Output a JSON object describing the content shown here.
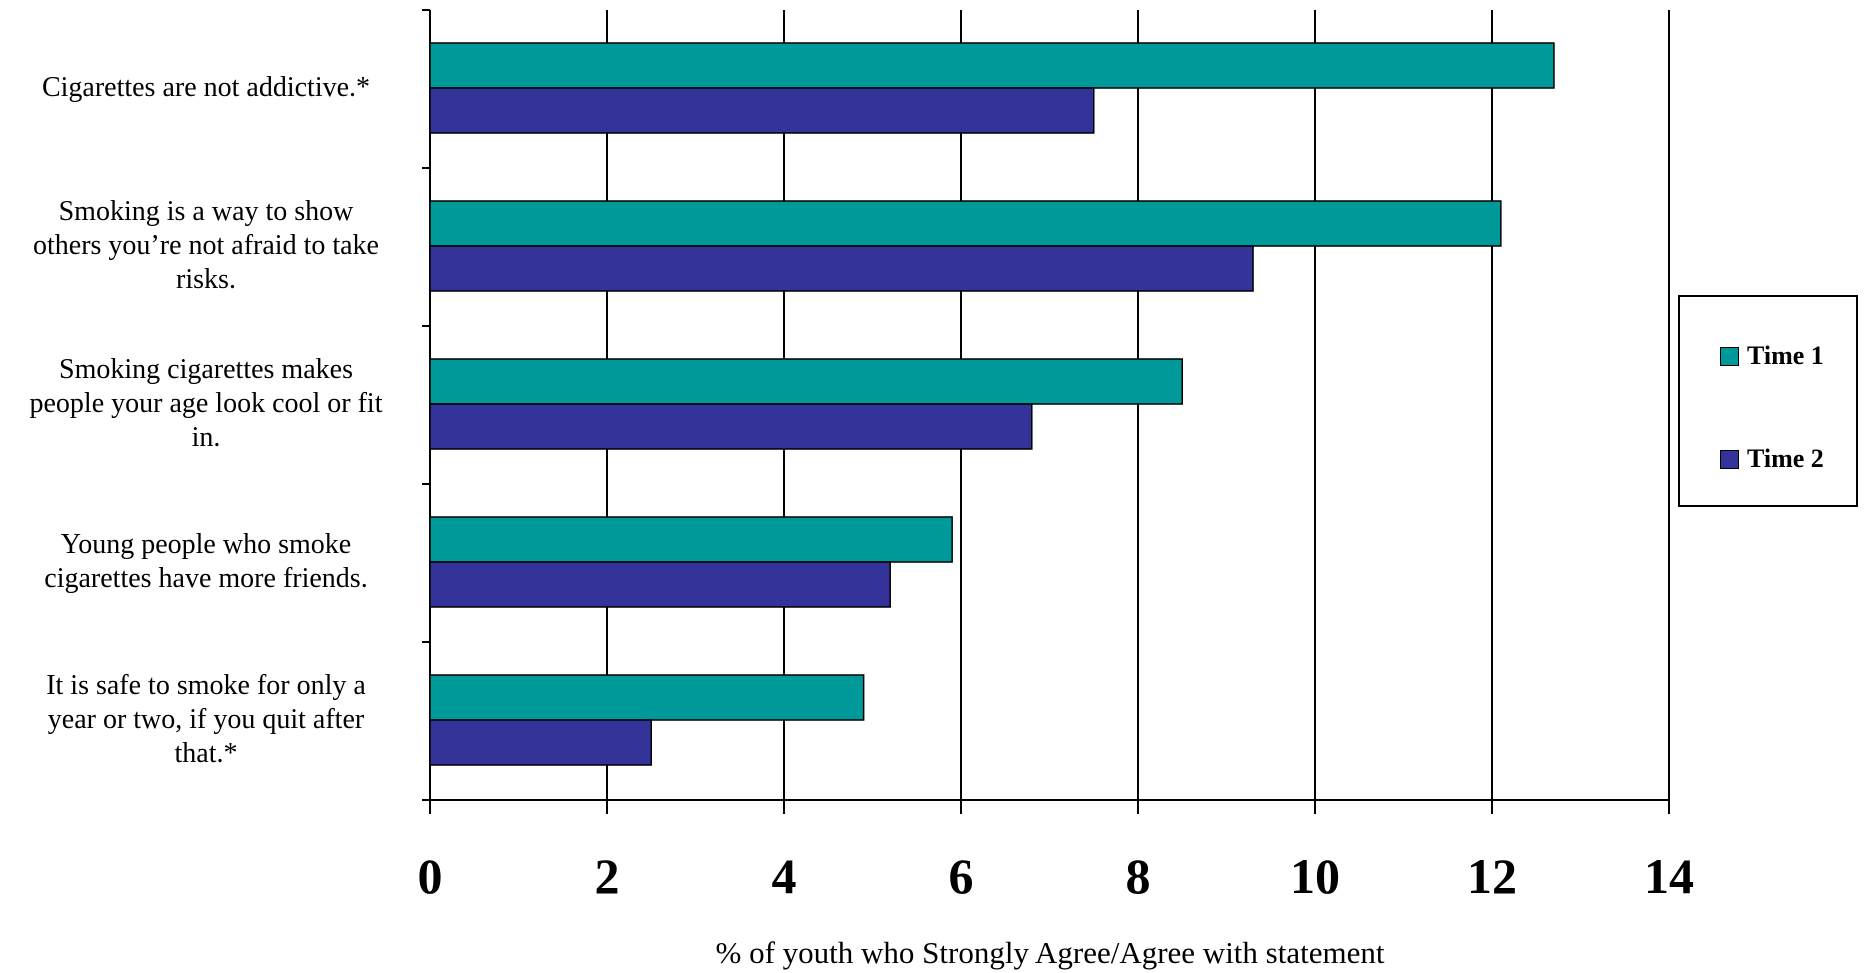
{
  "chart_data": {
    "type": "bar",
    "orientation": "horizontal",
    "categories": [
      "Cigarettes are not addictive.*",
      "Smoking is a way to show\nothers you’re not afraid to take\nrisks.",
      "Smoking cigarettes makes\npeople your age look cool or fit\nin.",
      "Young people who smoke\ncigarettes have more friends.",
      "It is safe to smoke for only a\nyear or two, if you quit after\nthat.*"
    ],
    "series": [
      {
        "name": "Time 1",
        "color": "#009999",
        "values": [
          12.7,
          12.1,
          8.5,
          5.9,
          4.9
        ]
      },
      {
        "name": "Time 2",
        "color": "#333399",
        "values": [
          7.5,
          9.3,
          6.8,
          5.2,
          2.5
        ]
      }
    ],
    "xlabel": "% of youth who Strongly Agree/Agree with statement",
    "ylabel": "",
    "xlim": [
      0,
      14
    ],
    "xticks": [
      "0",
      "2",
      "4",
      "6",
      "8",
      "10",
      "12",
      "14"
    ],
    "grid": true,
    "legend_position": "right"
  }
}
